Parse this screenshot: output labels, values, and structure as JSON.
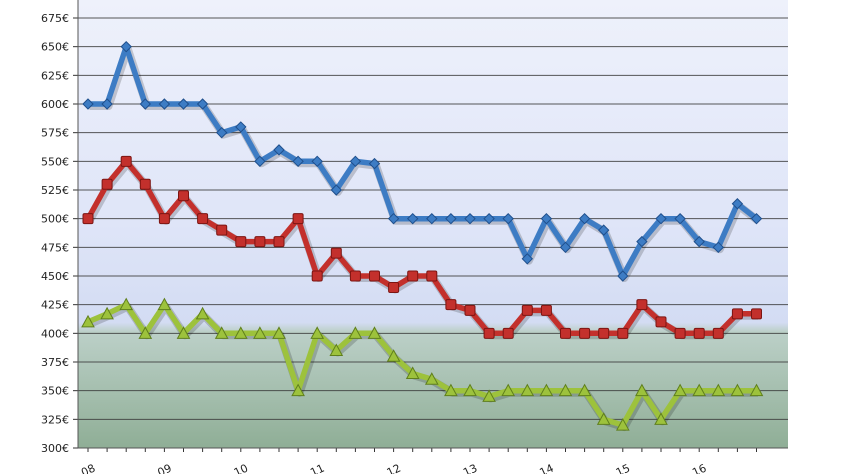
{
  "chart_data": {
    "type": "line",
    "title": "",
    "xlabel": "",
    "ylabel": "",
    "ylim": [
      300,
      690
    ],
    "y_ticks": [
      "675€",
      "650€",
      "625€",
      "600€",
      "575€",
      "550€",
      "525€",
      "500€",
      "475€",
      "450€",
      "425€",
      "400€",
      "375€",
      "350€",
      "325€",
      "300€"
    ],
    "y_tick_values": [
      675,
      650,
      625,
      600,
      575,
      550,
      525,
      500,
      475,
      450,
      425,
      400,
      375,
      350,
      325,
      300
    ],
    "x_ticks": [
      "08",
      "09",
      "10",
      "11",
      "12",
      "13",
      "14",
      "15",
      "16"
    ],
    "x_tick_index": [
      0,
      4,
      8,
      12,
      16,
      20,
      24,
      28,
      32
    ],
    "grid": true,
    "series": [
      {
        "color": "#3d7cc4",
        "marker": "diamond",
        "values": [
          600,
          600,
          650,
          600,
          600,
          600,
          600,
          575,
          580,
          550,
          560,
          550,
          550,
          525,
          550,
          548,
          500,
          500,
          500,
          500,
          500,
          500,
          500,
          465,
          500,
          475,
          500,
          490,
          450,
          480,
          500,
          500,
          480,
          475,
          513,
          500
        ]
      },
      {
        "color": "#c3302c",
        "marker": "square",
        "values": [
          500,
          530,
          550,
          530,
          500,
          520,
          500,
          490,
          480,
          480,
          480,
          500,
          450,
          470,
          450,
          450,
          440,
          450,
          450,
          425,
          420,
          400,
          400,
          420,
          420,
          400,
          400,
          400,
          400,
          425,
          410,
          400,
          400,
          400,
          417,
          417
        ]
      },
      {
        "color": "#9dc23c",
        "marker": "triangle",
        "values": [
          410,
          417,
          425,
          400,
          425,
          400,
          417,
          400,
          400,
          400,
          400,
          350,
          400,
          385,
          400,
          400,
          380,
          365,
          360,
          350,
          350,
          345,
          350,
          350,
          350,
          350,
          350,
          325,
          320,
          350,
          325,
          350,
          350,
          350,
          350,
          350
        ]
      }
    ]
  }
}
